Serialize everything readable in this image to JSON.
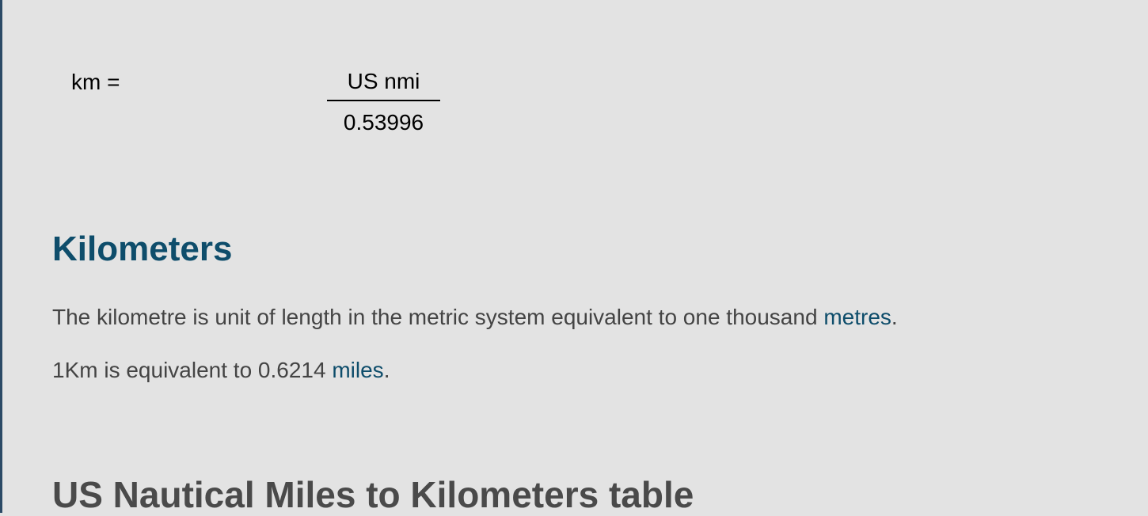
{
  "formula": {
    "lhs": "km =",
    "numerator": "US nmi",
    "denominator": "0.53996"
  },
  "kilometers": {
    "heading": "Kilometers",
    "para1_text": "The kilometre is unit of length in the metric system equivalent to one thousand ",
    "para1_link": "metres",
    "para1_end": ".",
    "para2_text": "1Km is equivalent to 0.6214 ",
    "para2_link": "miles",
    "para2_end": "."
  },
  "table_section": {
    "heading": "US Nautical Miles to Kilometers table"
  },
  "colors": {
    "background": "#e3e3e3",
    "heading_accent": "#0e4d6b",
    "link": "#0e4d6b",
    "body_text": "#444444",
    "section_heading": "#4a4a4a"
  }
}
